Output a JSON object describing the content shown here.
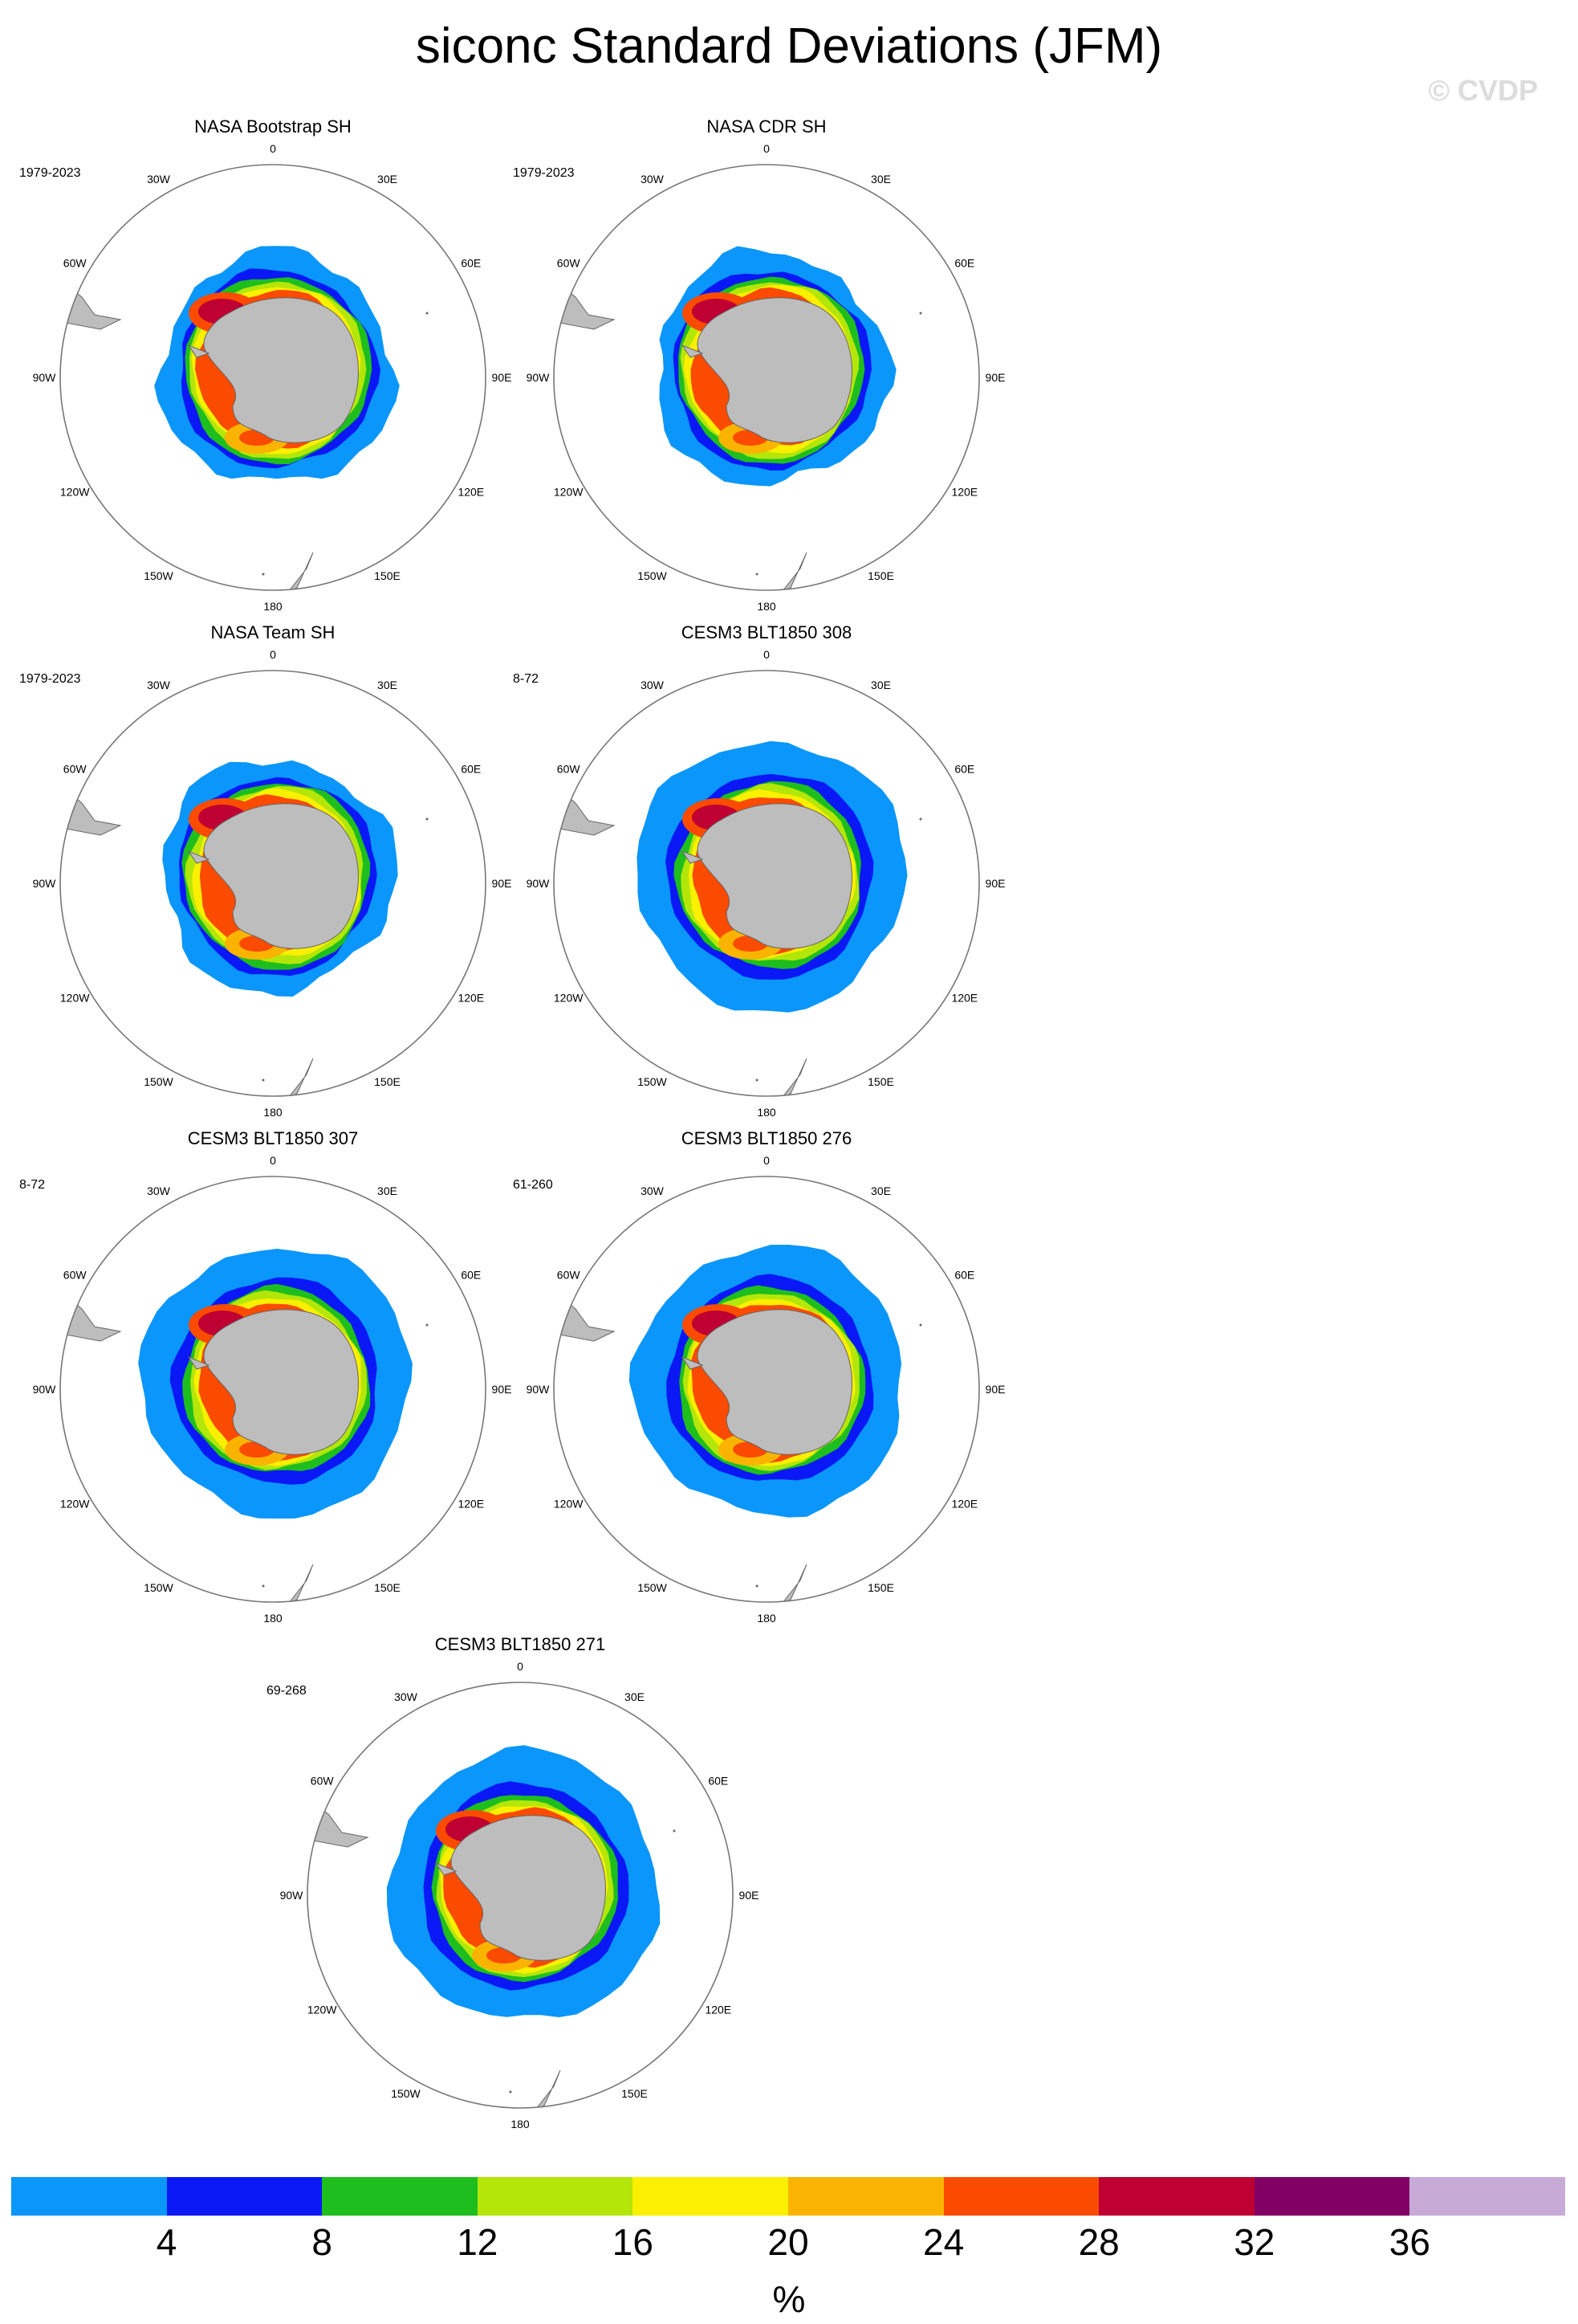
{
  "title": "siconc Standard Deviations (JFM)",
  "watermark": "© CVDP",
  "panels": [
    {
      "title": "NASA Bootstrap SH",
      "years": "1979-2023",
      "style": "obs"
    },
    {
      "title": "NASA CDR SH",
      "years": "1979-2023",
      "style": "obs"
    },
    {
      "title": "NASA Team SH",
      "years": "1979-2023",
      "style": "obs"
    },
    {
      "title": "CESM3 BLT1850 308",
      "years": "8-72",
      "style": "model"
    },
    {
      "title": "CESM3 BLT1850 307",
      "years": "8-72",
      "style": "model"
    },
    {
      "title": "CESM3 BLT1850 276",
      "years": "61-260",
      "style": "model"
    },
    {
      "title": "CESM3 BLT1850 271",
      "years": "69-268",
      "style": "model"
    }
  ],
  "longitude_labels": [
    "0",
    "30E",
    "60E",
    "90E",
    "120E",
    "150E",
    "180",
    "150W",
    "120W",
    "90W",
    "60W",
    "30W"
  ],
  "colorbar": {
    "colors": [
      "#0a96fa",
      "#0a18f5",
      "#1ebe1e",
      "#b4e60a",
      "#faf000",
      "#fab400",
      "#fa4b00",
      "#be0032",
      "#820064",
      "#c8aad7"
    ],
    "labels": [
      "4",
      "8",
      "12",
      "16",
      "20",
      "24",
      "28",
      "32",
      "36"
    ],
    "units": "%"
  }
}
